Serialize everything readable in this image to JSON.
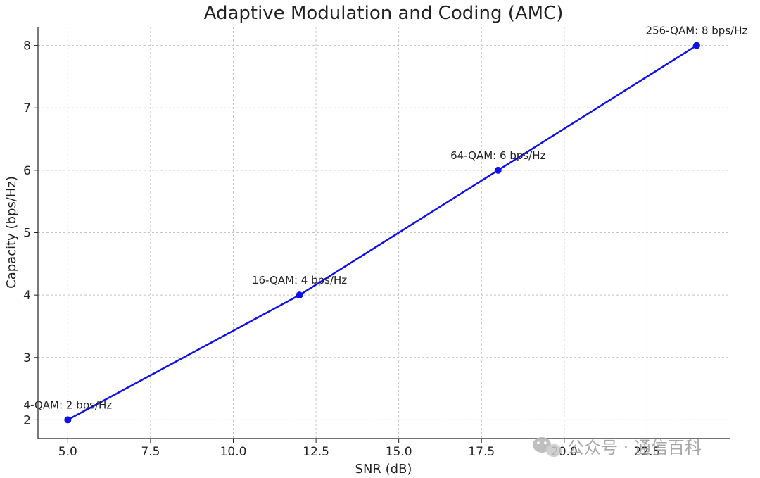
{
  "chart_data": {
    "type": "line",
    "title": "Adaptive Modulation and Coding (AMC)",
    "xlabel": "SNR (dB)",
    "ylabel": "Capacity (bps/Hz)",
    "xlim": [
      4.1,
      25.0
    ],
    "ylim": [
      1.7,
      8.3
    ],
    "x_ticks": [
      "5.0",
      "7.5",
      "10.0",
      "12.5",
      "15.0",
      "17.5",
      "20.0",
      "22.5"
    ],
    "y_ticks": [
      "2",
      "3",
      "4",
      "5",
      "6",
      "7",
      "8"
    ],
    "grid": true,
    "series": [
      {
        "color": "#1010e8",
        "points": [
          {
            "x": 5,
            "y": 2,
            "label": "4-QAM: 2 bps/Hz"
          },
          {
            "x": 12,
            "y": 4,
            "label": "16-QAM: 4 bps/Hz"
          },
          {
            "x": 18,
            "y": 6,
            "label": "64-QAM: 6 bps/Hz"
          },
          {
            "x": 24,
            "y": 8,
            "label": "256-QAM: 8 bps/Hz"
          }
        ]
      }
    ]
  },
  "watermark": {
    "icon": "wechat-icon",
    "text": "公众号 · 通信百科"
  }
}
